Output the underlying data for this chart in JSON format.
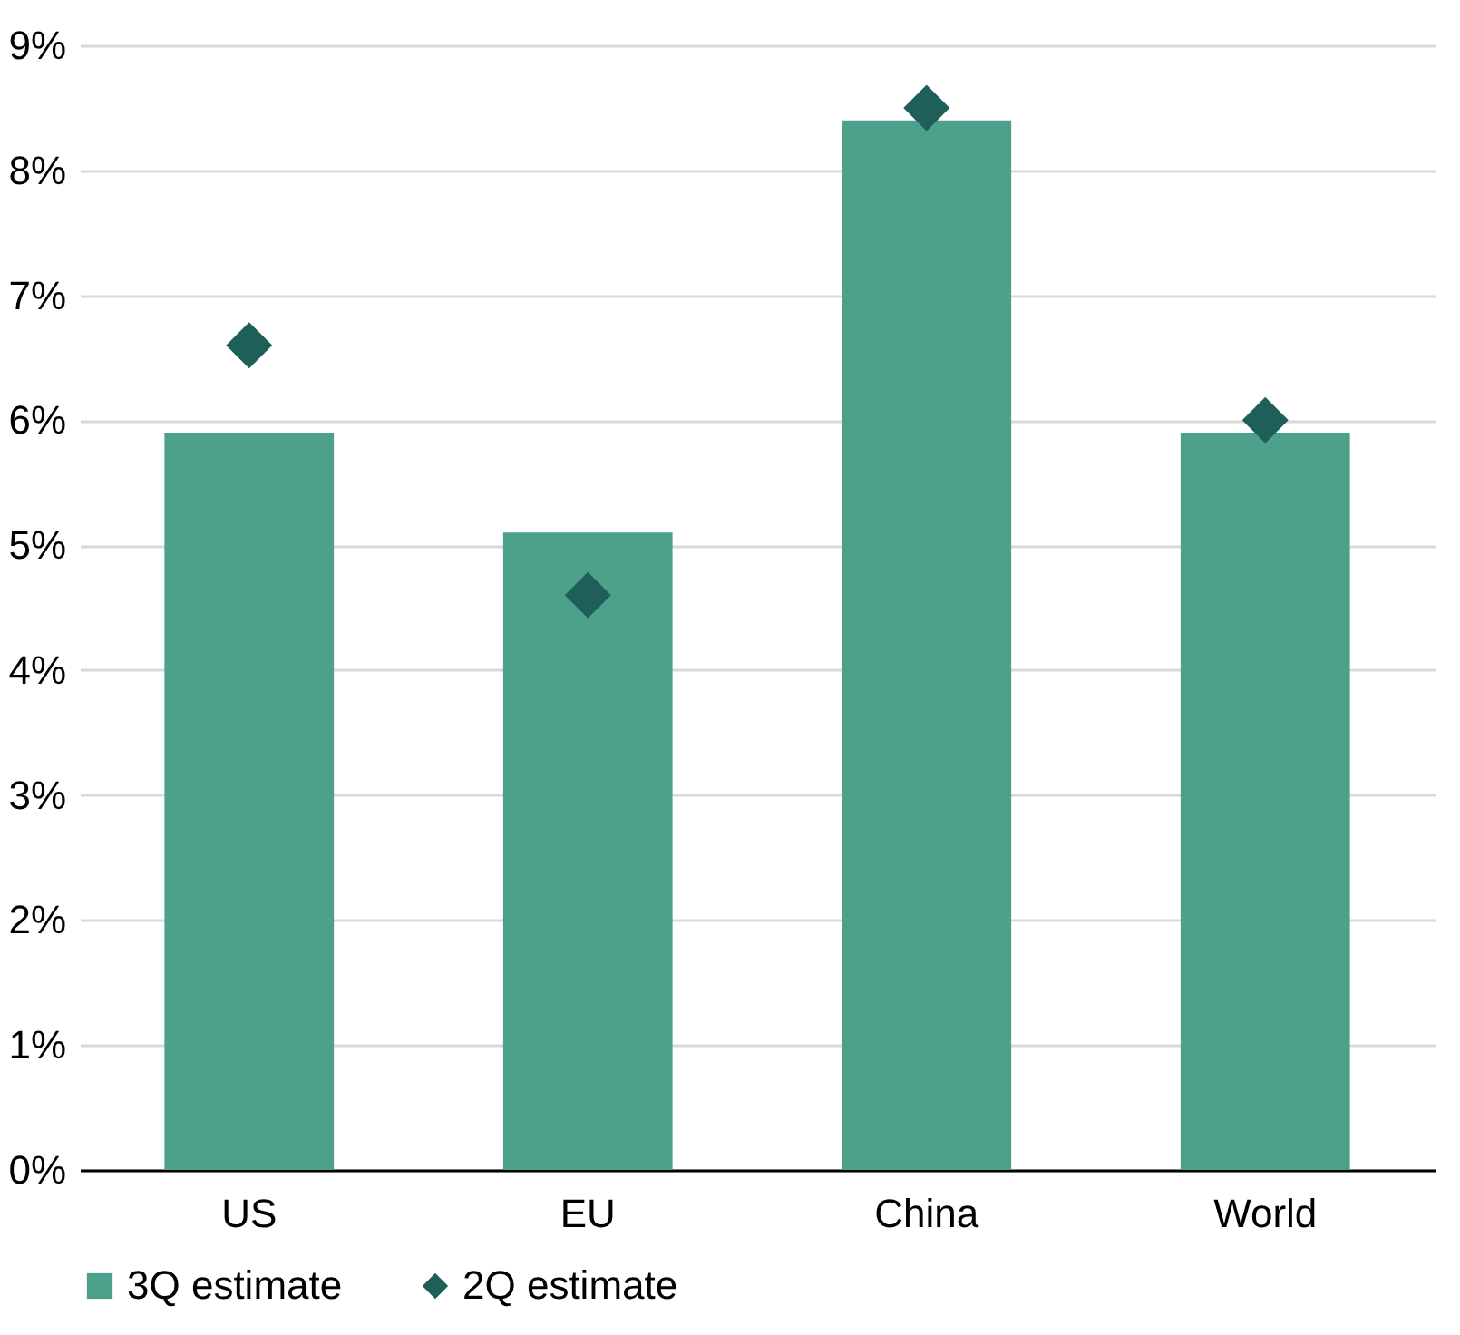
{
  "chart_data": {
    "type": "bar",
    "categories": [
      "US",
      "EU",
      "China",
      "World"
    ],
    "series": [
      {
        "name": "3Q estimate",
        "color": "#4da08a",
        "values": [
          5.9,
          5.1,
          8.4,
          5.9
        ]
      },
      {
        "name": "2Q estimate",
        "type": "scatter",
        "color": "#1f5f59",
        "marker": "diamond",
        "values": [
          6.6,
          4.6,
          8.5,
          6.0
        ]
      }
    ],
    "ylim": [
      0,
      9
    ],
    "yticks": [
      {
        "value": 0,
        "label": "0%"
      },
      {
        "value": 1,
        "label": "1%"
      },
      {
        "value": 2,
        "label": "2%"
      },
      {
        "value": 3,
        "label": "3%"
      },
      {
        "value": 4,
        "label": "4%"
      },
      {
        "value": 5,
        "label": "5%"
      },
      {
        "value": 6,
        "label": "6%"
      },
      {
        "value": 7,
        "label": "7%"
      },
      {
        "value": 8,
        "label": "8%"
      },
      {
        "value": 9,
        "label": "9%"
      }
    ],
    "grid": "y",
    "legend": "bottom left"
  }
}
